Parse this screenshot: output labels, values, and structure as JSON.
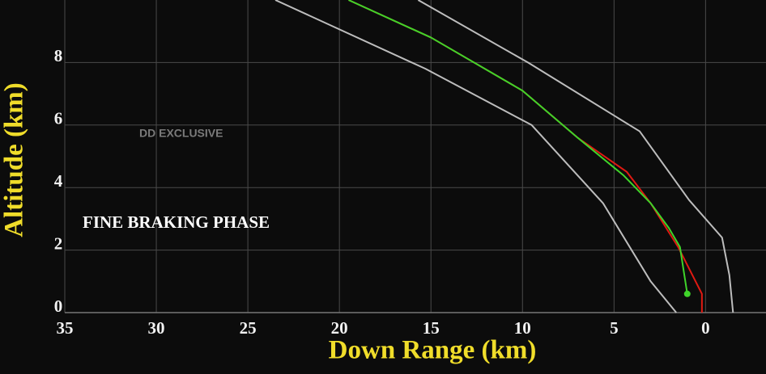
{
  "chart_data": {
    "type": "line",
    "x_label": "Down Range (km)",
    "y_label": "Altitude (km)",
    "annotations": [
      "FINE BRAKING PHASE",
      "DD EXCLUSIVE"
    ],
    "xlim": [
      35,
      -3.3
    ],
    "ylim": [
      0,
      10
    ],
    "xticks": [
      35,
      30,
      25,
      20,
      15,
      10,
      5,
      0
    ],
    "yticks": [
      0,
      2,
      4,
      6,
      8
    ],
    "grid": true,
    "series": [
      {
        "color": "#bdbdbd",
        "x": [
          15.7,
          9.7,
          3.6,
          0.9,
          -0.9,
          -1.3,
          -1.5
        ],
        "values": [
          10,
          8,
          5.8,
          3.6,
          2.4,
          1.2,
          0
        ]
      },
      {
        "color": "#bdbdbd",
        "x": [
          23.5,
          15.3,
          9.5,
          5.6,
          3.0,
          1.6
        ],
        "values": [
          10,
          7.8,
          6.0,
          3.5,
          1.0,
          0
        ]
      },
      {
        "color": "#e01a12",
        "x": [
          19.5,
          15,
          10,
          7,
          4.3,
          3,
          1.5,
          0.2,
          0.2
        ],
        "values": [
          10,
          8.8,
          7.1,
          5.6,
          4.5,
          3.5,
          2.1,
          0.6,
          0
        ]
      },
      {
        "color": "#3fd42a",
        "x": [
          19.5,
          15,
          10,
          7,
          4.5,
          3,
          2,
          1.4,
          1.0
        ],
        "values": [
          10,
          8.8,
          7.1,
          5.6,
          4.4,
          3.5,
          2.7,
          2.1,
          0.6
        ],
        "end_marker": true
      }
    ]
  }
}
